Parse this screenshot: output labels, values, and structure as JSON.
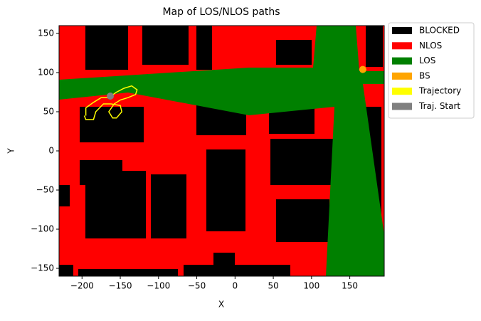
{
  "chart_data": {
    "type": "map",
    "title": "Map of LOS/NLOS paths",
    "xlabel": "X",
    "ylabel": "Y",
    "xlim": [
      -230,
      195
    ],
    "ylim": [
      -160,
      160
    ],
    "xticks": [
      {
        "value": -200,
        "label": "−200"
      },
      {
        "value": -150,
        "label": "−150"
      },
      {
        "value": -100,
        "label": "−100"
      },
      {
        "value": -50,
        "label": "−50"
      },
      0,
      50,
      100,
      150
    ],
    "yticks": [
      {
        "value": -150,
        "label": "−150"
      },
      {
        "value": -100,
        "label": "−100"
      },
      {
        "value": -50,
        "label": "−50"
      },
      0,
      50,
      100,
      150
    ],
    "legend_position": "outside-right",
    "series": [
      {
        "name": "BLOCKED",
        "type": "region",
        "color": "#000000"
      },
      {
        "name": "NLOS",
        "type": "region",
        "color": "#ff0000"
      },
      {
        "name": "LOS",
        "type": "region",
        "color": "#008000"
      },
      {
        "name": "BS",
        "type": "scatter",
        "color": "#ffa500",
        "x": [
          167
        ],
        "y": [
          104
        ]
      },
      {
        "name": "Trajectory",
        "type": "line",
        "color": "#ffff00",
        "x": [
          -195,
          -195,
          -185,
          -175,
          -165,
          -155,
          -145,
          -135,
          -128,
          -130,
          -140,
          -150,
          -158,
          -165,
          -160,
          -155,
          -148,
          -150,
          -162,
          -172,
          -182,
          -185,
          -195,
          -197
        ],
        "y": [
          45,
          55,
          62,
          68,
          68,
          75,
          80,
          83,
          78,
          72,
          68,
          65,
          60,
          50,
          42,
          42,
          50,
          58,
          60,
          60,
          50,
          40,
          40,
          45
        ]
      },
      {
        "name": "Traj. Start",
        "type": "scatter",
        "color": "#808080",
        "x": [
          -163
        ],
        "y": [
          70
        ]
      }
    ]
  }
}
